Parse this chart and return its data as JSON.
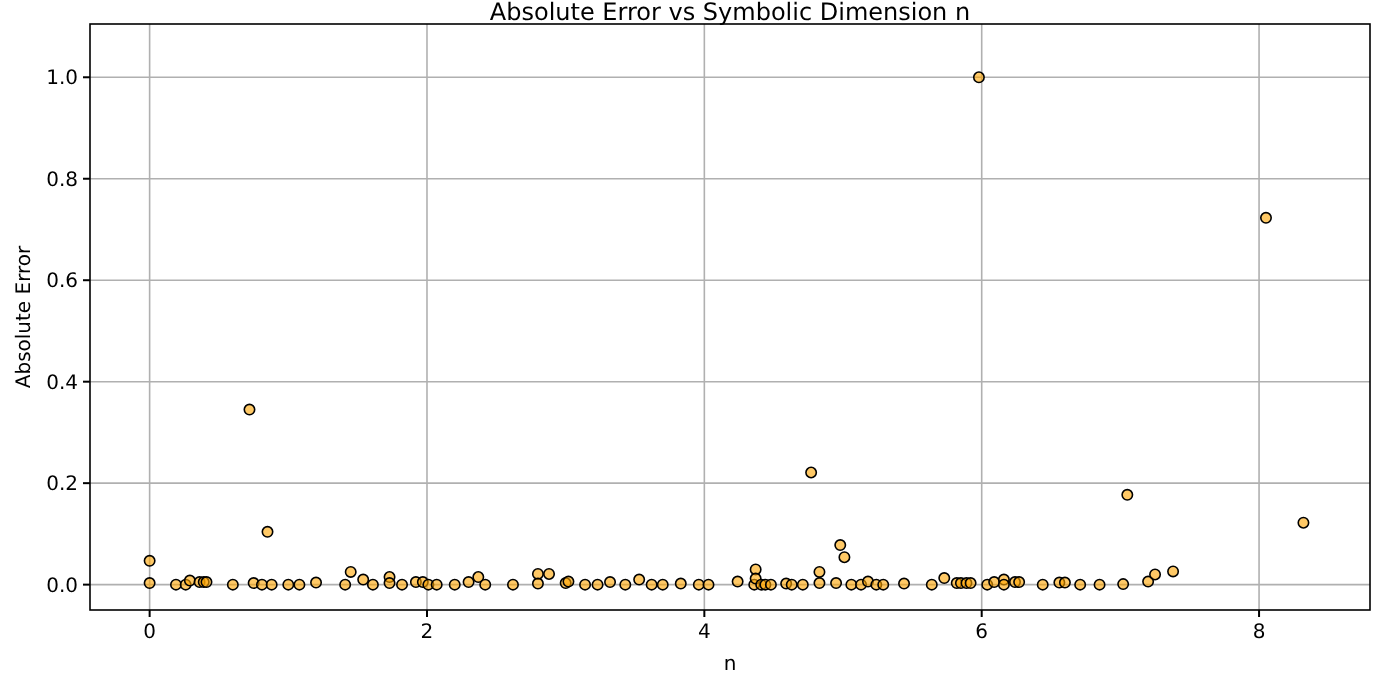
{
  "chart_data": {
    "type": "scatter",
    "title": "Absolute Error vs Symbolic Dimension n",
    "xlabel": "n",
    "ylabel": "Absolute Error",
    "xlim": [
      -0.43,
      8.8
    ],
    "ylim": [
      -0.05,
      1.105
    ],
    "xticks": [
      0,
      2,
      4,
      6,
      8
    ],
    "yticks": [
      {
        "value": 0,
        "label": "0.0"
      },
      {
        "value": 0.2,
        "label": "0.2"
      },
      {
        "value": 0.4,
        "label": "0.4"
      },
      {
        "value": 0.6,
        "label": "0.6"
      },
      {
        "value": 0.8,
        "label": "0.8"
      },
      {
        "value": 1,
        "label": "1.0"
      }
    ],
    "grid": true,
    "marker": "circle",
    "series": [
      {
        "color": "#ffa500",
        "x": [
          0,
          0,
          0.19,
          0.26,
          0.29,
          0.36,
          0.39,
          0.41,
          0.6,
          0.72,
          0.75,
          0.81,
          0.85,
          0.88,
          1.0,
          1.08,
          1.2,
          1.41,
          1.45,
          1.54,
          1.61,
          1.73,
          1.73,
          1.82,
          1.92,
          1.97,
          2.01,
          2.07,
          2.2,
          2.3,
          2.37,
          2.42,
          2.62,
          2.8,
          2.8,
          2.88,
          3.0,
          3.02,
          3.14,
          3.23,
          3.32,
          3.43,
          3.53,
          3.62,
          3.7,
          3.83,
          3.96,
          4.03,
          4.24,
          4.36,
          4.37,
          4.37,
          4.41,
          4.44,
          4.48,
          4.59,
          4.63,
          4.71,
          4.77,
          4.83,
          4.83,
          4.95,
          4.98,
          5.01,
          5.06,
          5.13,
          5.18,
          5.24,
          5.29,
          5.44,
          5.64,
          5.73,
          5.82,
          5.85,
          5.89,
          5.92,
          5.98,
          6.04,
          6.09,
          6.16,
          6.16,
          6.24,
          6.27,
          6.44,
          6.56,
          6.6,
          6.71,
          6.85,
          7.02,
          7.05,
          7.2,
          7.25,
          7.38,
          8.05,
          8.32
        ],
        "values": [
          0.047,
          0.003,
          0,
          0,
          0.008,
          0.005,
          0.005,
          0.005,
          0,
          0.345,
          0.003,
          0,
          0.104,
          0,
          0,
          0,
          0.004,
          0,
          0.025,
          0.01,
          0,
          0.015,
          0.003,
          0,
          0.005,
          0.005,
          0,
          0,
          0,
          0.005,
          0.015,
          0,
          0,
          0.021,
          0.002,
          0.021,
          0.003,
          0.006,
          0,
          0,
          0.005,
          0,
          0.01,
          0,
          0,
          0.002,
          0,
          0,
          0.006,
          0,
          0.03,
          0.012,
          0,
          0,
          0,
          0.002,
          0,
          0,
          0.221,
          0.025,
          0.003,
          0.003,
          0.078,
          0.054,
          0,
          0,
          0.006,
          0,
          0,
          0.002,
          0,
          0.013,
          0.003,
          0.003,
          0.003,
          0.003,
          1.0,
          0,
          0.005,
          0.01,
          0,
          0.005,
          0.005,
          0,
          0.004,
          0.004,
          0,
          0,
          0.001,
          0.177,
          0.006,
          0.02,
          0.026,
          0.723,
          0.122
        ]
      }
    ]
  }
}
